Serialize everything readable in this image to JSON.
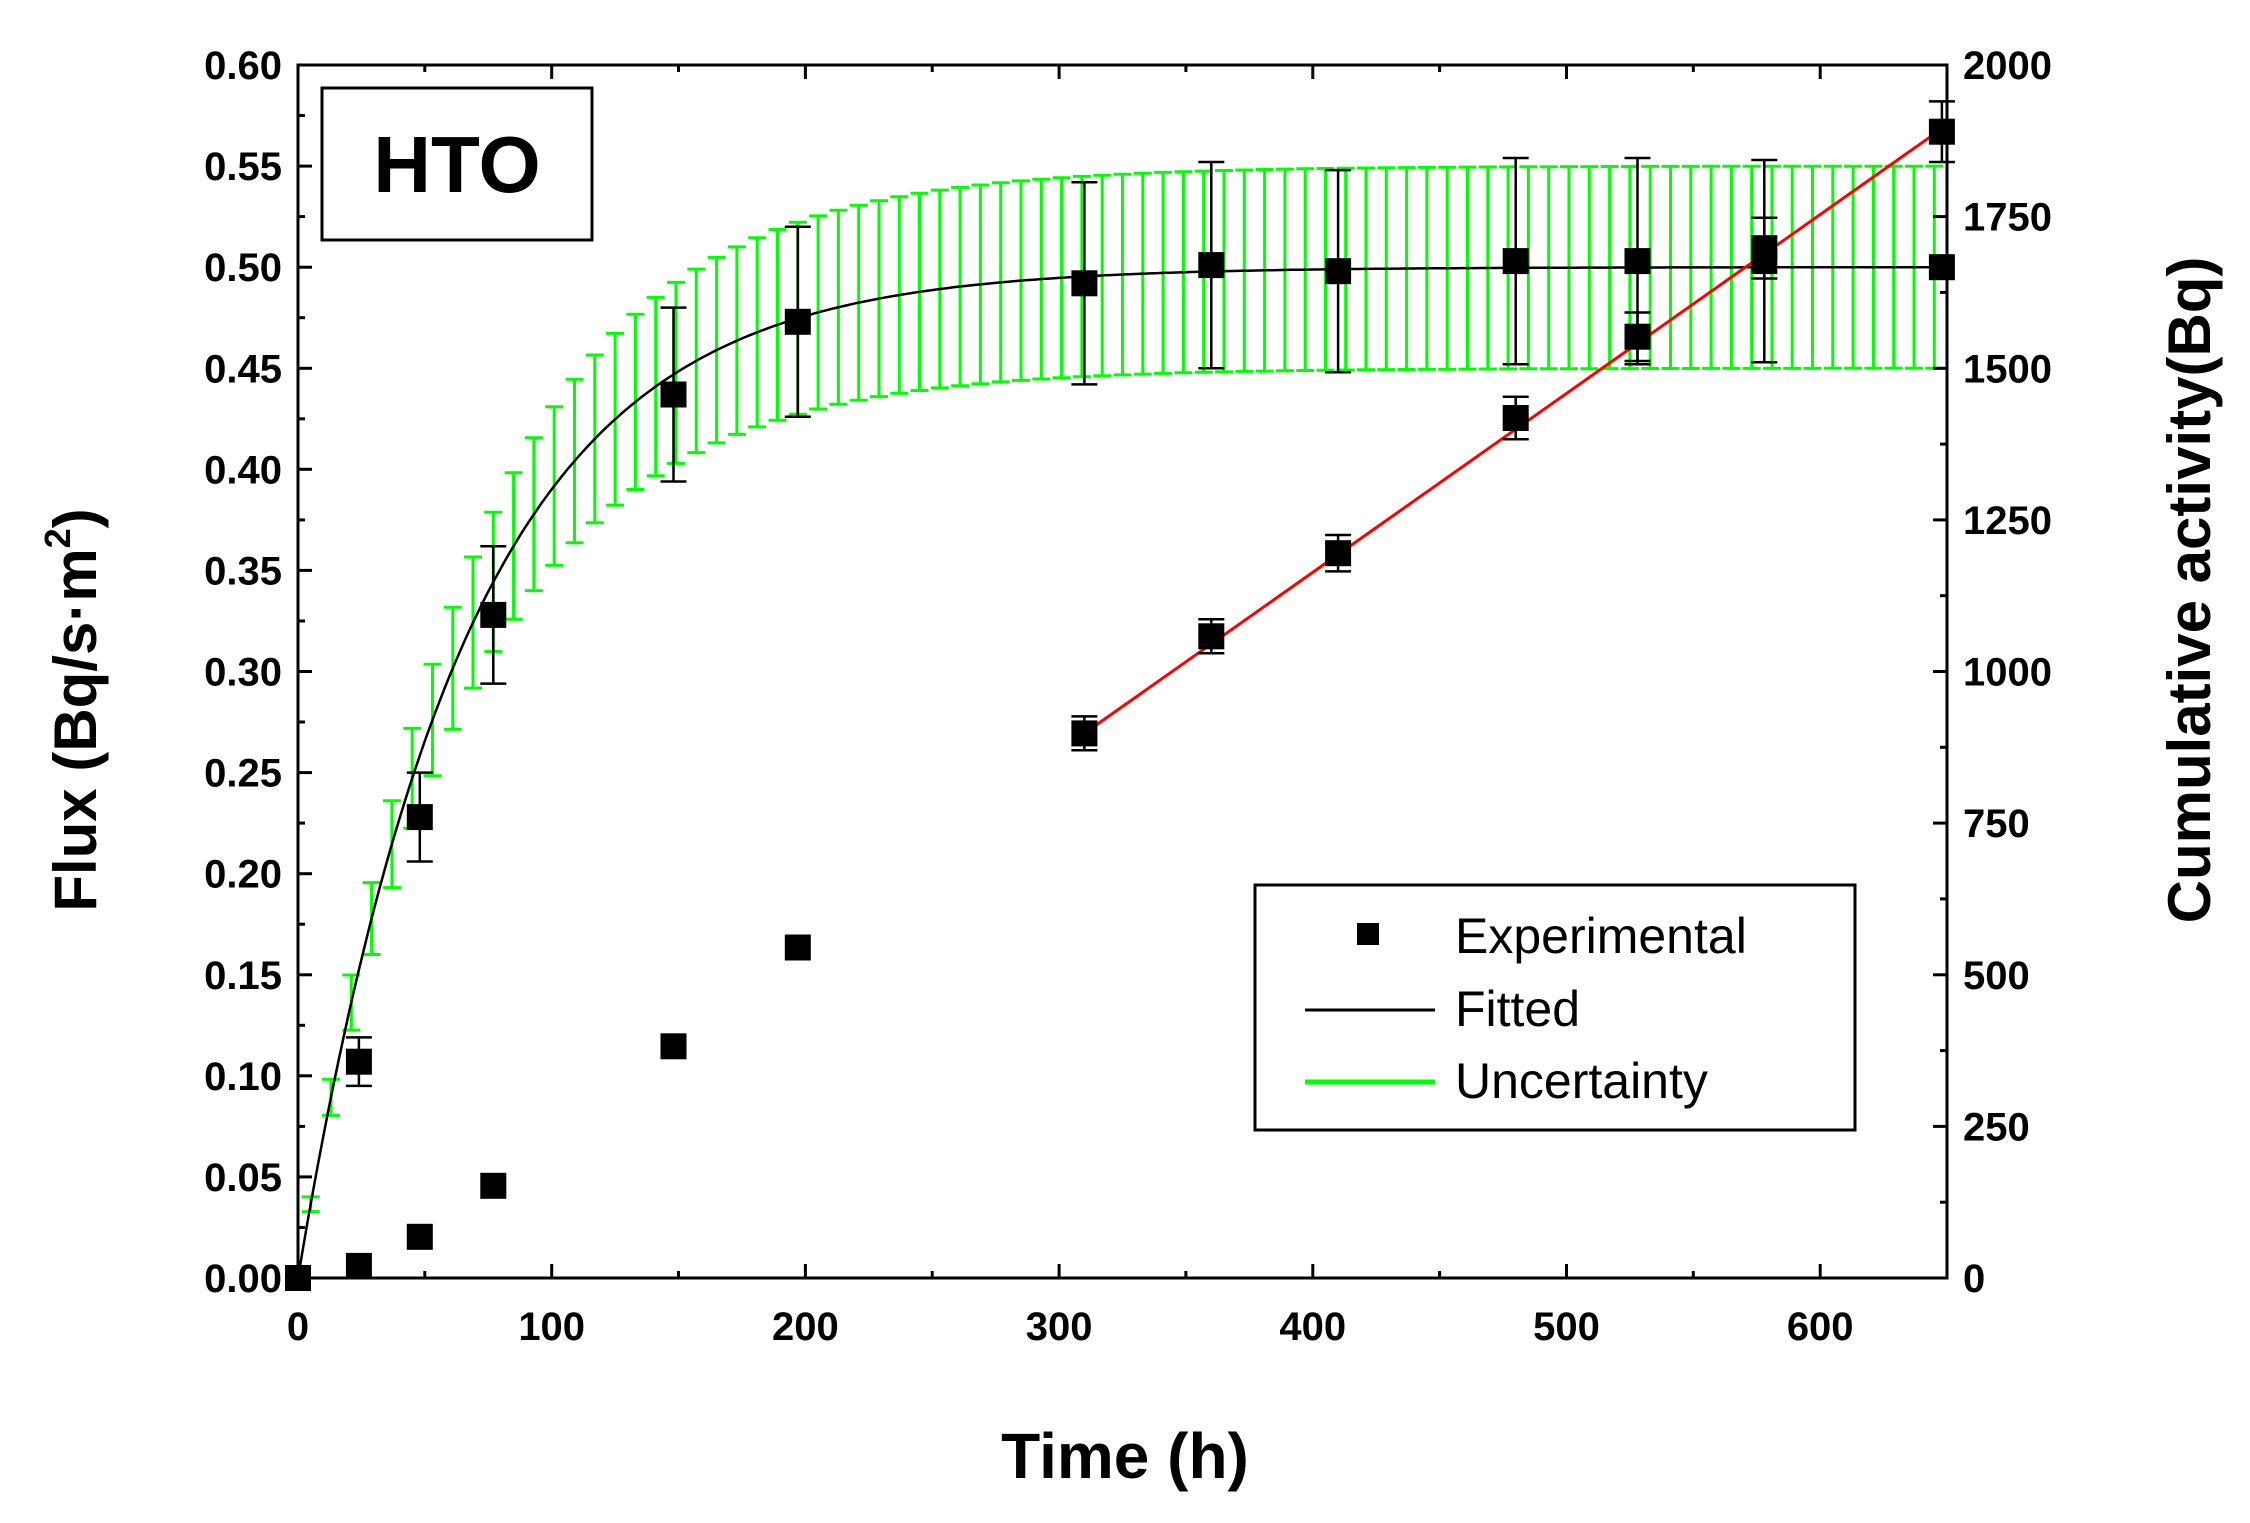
{
  "chart_data": {
    "type": "scatter",
    "panel_label": "HTO",
    "xlabel": "Time (h)",
    "ylabel": "Flux (Bq/s·m²)",
    "ylabel_parts": {
      "main": "Flux (Bq/s·m",
      "sup": "2",
      "end": ")"
    },
    "y2label": "Cumulative activity(Bq)",
    "xlim": [
      0,
      650
    ],
    "ylim": [
      0,
      0.6
    ],
    "y2lim": [
      0,
      2000
    ],
    "x_ticks": [
      "0",
      "100",
      "200",
      "300",
      "400",
      "500",
      "600"
    ],
    "y_ticks": [
      "0.00",
      "0.05",
      "0.10",
      "0.15",
      "0.20",
      "0.25",
      "0.30",
      "0.35",
      "0.40",
      "0.45",
      "0.50",
      "0.55",
      "0.60"
    ],
    "y2_ticks": [
      "0",
      "250",
      "500",
      "750",
      "1000",
      "1250",
      "1500",
      "1750",
      "2000"
    ],
    "legend": {
      "position": "lower-right",
      "entries": [
        "Experimental",
        "Fitted",
        "Uncertainty"
      ]
    },
    "colors": {
      "experimental": "#000000",
      "fitted": "#000000",
      "uncertainty": "#00ff00",
      "linear_fit": "#ff0000"
    },
    "flux_experimental": [
      {
        "x": 0,
        "y": 0.0,
        "err": 0.0
      },
      {
        "x": 24,
        "y": 0.107,
        "err": 0.012
      },
      {
        "x": 48,
        "y": 0.228,
        "err": 0.022
      },
      {
        "x": 77,
        "y": 0.328,
        "err": 0.034
      },
      {
        "x": 148,
        "y": 0.437,
        "err": 0.043
      },
      {
        "x": 197,
        "y": 0.473,
        "err": 0.047
      },
      {
        "x": 310,
        "y": 0.492,
        "err": 0.05
      },
      {
        "x": 360,
        "y": 0.501,
        "err": 0.051
      },
      {
        "x": 410,
        "y": 0.498,
        "err": 0.05
      },
      {
        "x": 480,
        "y": 0.503,
        "err": 0.051
      },
      {
        "x": 528,
        "y": 0.503,
        "err": 0.051
      },
      {
        "x": 578,
        "y": 0.503,
        "err": 0.05
      },
      {
        "x": 648,
        "y": 0.5,
        "err": 0.0
      }
    ],
    "cumulative_experimental": [
      {
        "x": 24,
        "y": 20
      },
      {
        "x": 48,
        "y": 68
      },
      {
        "x": 77,
        "y": 152
      },
      {
        "x": 148,
        "y": 382
      },
      {
        "x": 197,
        "y": 545
      },
      {
        "x": 310,
        "y": 898,
        "err": 28
      },
      {
        "x": 360,
        "y": 1058,
        "err": 28
      },
      {
        "x": 410,
        "y": 1195,
        "err": 30
      },
      {
        "x": 480,
        "y": 1418,
        "err": 35
      },
      {
        "x": 528,
        "y": 1552,
        "err": 40
      },
      {
        "x": 578,
        "y": 1698,
        "err": 50
      },
      {
        "x": 648,
        "y": 1890,
        "err": 50
      }
    ],
    "flux_model": {
      "type": "diffusion",
      "steady_state_flux": 0.5,
      "time_constant_h": 66
    },
    "uncertainty_band": {
      "relative": 0.1,
      "step_h": 8
    },
    "linear_fit": {
      "x": [
        310,
        648
      ],
      "y": [
        898,
        1895
      ]
    }
  }
}
